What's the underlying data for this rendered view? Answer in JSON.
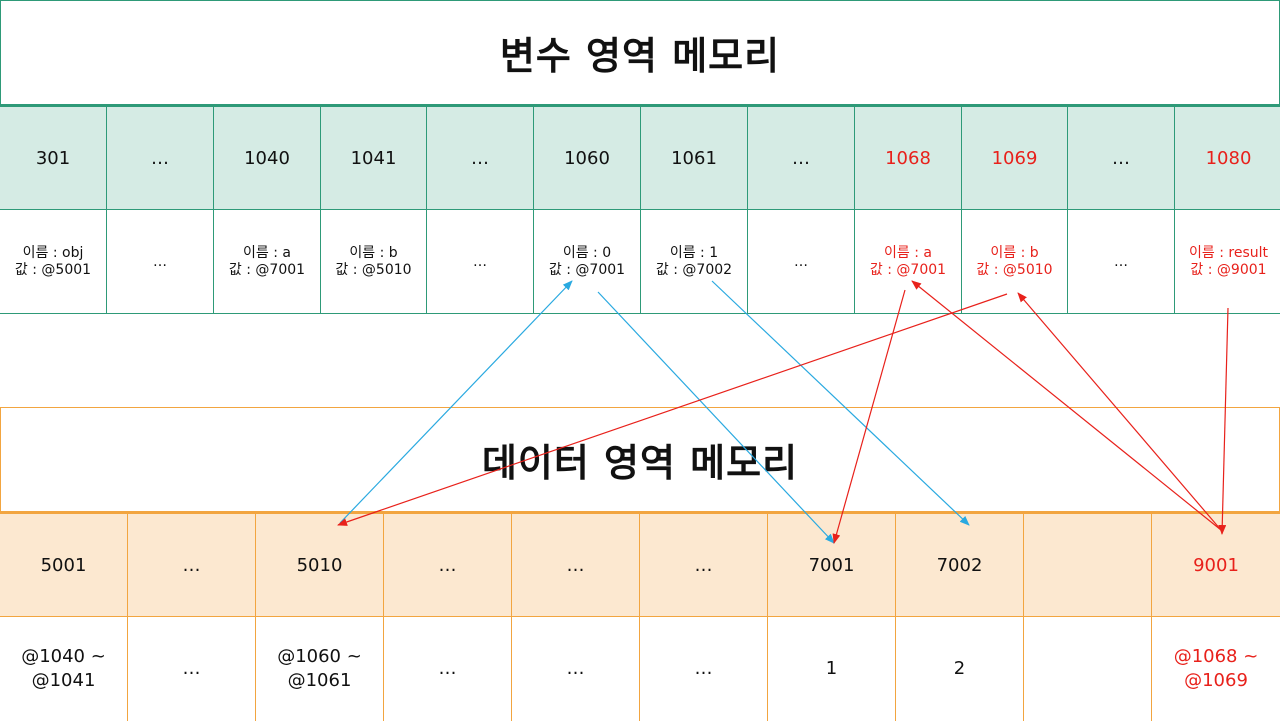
{
  "variable_area": {
    "title": "변수 영역 메모리",
    "cells": [
      {
        "address": "301",
        "content": "이름 : obj\n값 : @5001",
        "highlight": false
      },
      {
        "address": "…",
        "content": "…",
        "highlight": false
      },
      {
        "address": "1040",
        "content": "이름 : a\n값 : @7001",
        "highlight": false
      },
      {
        "address": "1041",
        "content": "이름 : b\n값 : @5010",
        "highlight": false
      },
      {
        "address": "…",
        "content": "…",
        "highlight": false
      },
      {
        "address": "1060",
        "content": "이름 : 0\n값 : @7001",
        "highlight": false
      },
      {
        "address": "1061",
        "content": "이름 : 1\n값 : @7002",
        "highlight": false
      },
      {
        "address": "…",
        "content": "…",
        "highlight": false
      },
      {
        "address": "1068",
        "content": "이름 : a\n값 : @7001",
        "highlight": true
      },
      {
        "address": "1069",
        "content": "이름 : b\n값 : @5010",
        "highlight": true
      },
      {
        "address": "…",
        "content": "…",
        "highlight": false
      },
      {
        "address": "1080",
        "content": "이름 : result\n값 : @9001",
        "highlight": true
      }
    ]
  },
  "data_area": {
    "title": "데이터 영역 메모리",
    "cells": [
      {
        "address": "5001",
        "content": "@1040 ~\n@1041",
        "highlight": false
      },
      {
        "address": "…",
        "content": "…",
        "highlight": false
      },
      {
        "address": "5010",
        "content": "@1060 ~\n@1061",
        "highlight": false
      },
      {
        "address": "…",
        "content": "…",
        "highlight": false
      },
      {
        "address": "…",
        "content": "…",
        "highlight": false
      },
      {
        "address": "…",
        "content": "…",
        "highlight": false
      },
      {
        "address": "7001",
        "content": "1",
        "highlight": false
      },
      {
        "address": "7002",
        "content": "2",
        "highlight": false
      },
      {
        "address": "",
        "content": "",
        "highlight": false
      },
      {
        "address": "9001",
        "content": "@1068 ~\n@1069",
        "highlight": true
      }
    ]
  },
  "colors": {
    "variable_accent": "#2e9a78",
    "variable_fill": "#d5ebe4",
    "data_accent": "#f2a540",
    "data_fill": "#fce8d0",
    "highlight_text": "#e8211b",
    "arrow_blue": "#29a9e0",
    "arrow_red": "#e8211b"
  },
  "arrows": [
    {
      "color": "blue",
      "from": "data.5010",
      "to": "var.1060"
    },
    {
      "color": "blue",
      "from": "var.1060",
      "to": "data.7001"
    },
    {
      "color": "blue",
      "from": "var.1061",
      "to": "data.7002"
    },
    {
      "color": "red",
      "from": "var.1068",
      "to": "data.7001"
    },
    {
      "color": "red",
      "from": "var.1069",
      "to": "data.5010"
    },
    {
      "color": "red",
      "from": "data.9001",
      "to": "var.1068"
    },
    {
      "color": "red",
      "from": "data.9001",
      "to": "var.1069"
    },
    {
      "color": "red",
      "from": "var.1080",
      "to": "data.9001"
    }
  ]
}
